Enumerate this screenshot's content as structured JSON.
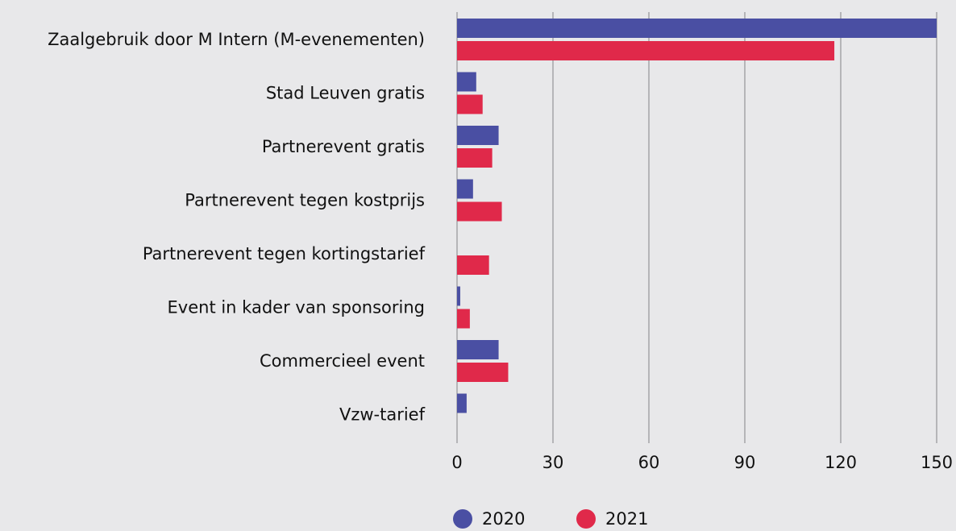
{
  "chart_data": {
    "type": "bar",
    "orientation": "horizontal",
    "categories": [
      "Zaalgebruik door M Intern (M-evenementen)",
      "Stad Leuven gratis",
      "Partnerevent gratis",
      "Partnerevent tegen kostprijs",
      "Partnerevent tegen kortingstarief",
      "Event in kader van sponsoring",
      "Commercieel event",
      "Vzw-tarief"
    ],
    "series": [
      {
        "name": "2020",
        "color": "#4a4fa3",
        "values": [
          150,
          6,
          13,
          5,
          0,
          1,
          13,
          3
        ]
      },
      {
        "name": "2021",
        "color": "#e0294a",
        "values": [
          118,
          8,
          11,
          14,
          10,
          4,
          16,
          0
        ]
      }
    ],
    "xlim": [
      0,
      150
    ],
    "xticks": [
      0,
      30,
      60,
      90,
      120,
      150
    ],
    "grid": true,
    "legend": "bottom"
  }
}
